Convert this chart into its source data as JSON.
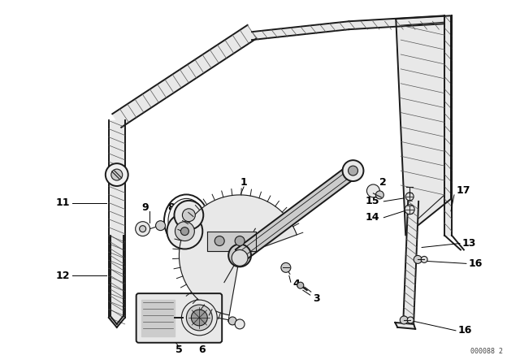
{
  "background_color": "#ffffff",
  "watermark": "000088 2",
  "fig_width": 6.4,
  "fig_height": 4.48,
  "dpi": 100,
  "text_color": "#000000",
  "line_color": "#1a1a1a",
  "part_color": "#1a1a1a",
  "hatch_color": "#555555",
  "fill_light": "#e8e8e8",
  "fill_mid": "#cccccc",
  "fill_dark": "#999999"
}
